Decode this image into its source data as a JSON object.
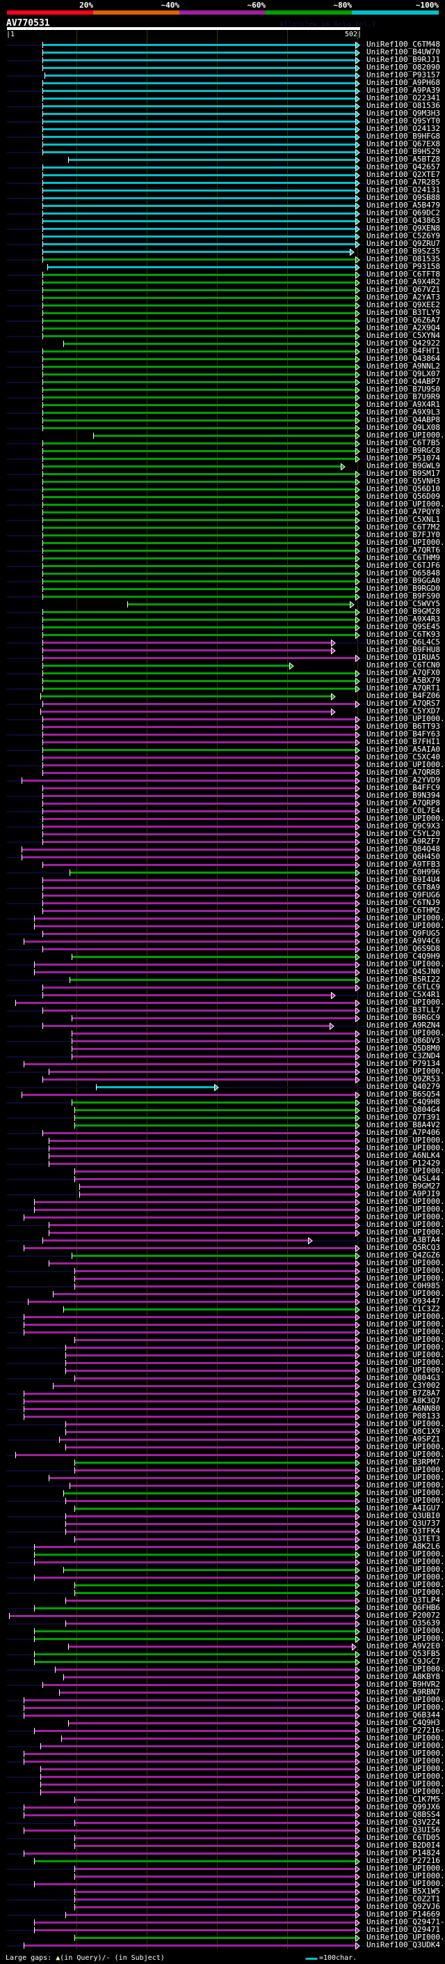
{
  "scale": {
    "labels": [
      "20%",
      "~40%",
      "~60%",
      "~80%",
      "~100%"
    ],
    "colors": [
      "#ff0020",
      "#e06000",
      "#a020a0",
      "#00a000",
      "#00c0c8"
    ]
  },
  "query": {
    "name": "AV770531",
    "start": "|1",
    "end": "502|",
    "length": 502
  },
  "watermark": "AlignView.pm Beta rel.7",
  "colors": {
    "C": "#00c0c8",
    "G": "#00a000",
    "M": "#a020a0"
  },
  "footer": {
    "gaps_prefix": "Large gaps: ",
    "gap_query_glyph": "▲",
    "gaps_text": "(in Query)/- (in Subject)",
    "legend_text": "=100char."
  },
  "rows": [
    [
      "UniRef100_C6TM48",
      "C",
      52
    ],
    [
      "UniRef100_B4UW70",
      "C",
      52
    ],
    [
      "UniRef100_B9RJJ1",
      "C",
      52
    ],
    [
      "UniRef100_O82090",
      "C",
      52
    ],
    [
      "UniRef100_P93157",
      "C",
      55
    ],
    [
      "UniRef100_A9PH68",
      "C",
      52
    ],
    [
      "UniRef100_A9PA39",
      "C",
      52
    ],
    [
      "UniRef100_O22341",
      "C",
      52
    ],
    [
      "UniRef100_O81536",
      "C",
      52
    ],
    [
      "UniRef100_Q9M3H3",
      "C",
      52
    ],
    [
      "UniRef100_Q9SYT0",
      "C",
      52
    ],
    [
      "UniRef100_O24132",
      "C",
      52
    ],
    [
      "UniRef100_B9HFG8",
      "C",
      52
    ],
    [
      "UniRef100_Q67EX8",
      "C",
      52
    ],
    [
      "UniRef100_B9H529",
      "C",
      52
    ],
    [
      "UniRef100_A5BTZ8",
      "C",
      89
    ],
    [
      "UniRef100_Q42657",
      "C",
      52
    ],
    [
      "UniRef100_Q2XTE7",
      "C",
      52
    ],
    [
      "UniRef100_A7R285",
      "C",
      52
    ],
    [
      "UniRef100_O24131",
      "C",
      52
    ],
    [
      "UniRef100_Q9SB88",
      "C",
      52
    ],
    [
      "UniRef100_A5B479",
      "C",
      52
    ],
    [
      "UniRef100_Q69DC2",
      "C",
      52
    ],
    [
      "UniRef100_Q43863",
      "C",
      52
    ],
    [
      "UniRef100_Q9XEN8",
      "C",
      52
    ],
    [
      "UniRef100_C5Z6Y9",
      "C",
      52
    ],
    [
      "UniRef100_Q9ZRU7",
      "C",
      52
    ],
    [
      "UniRef100_B9SZ35",
      "C",
      52,
      494
    ],
    [
      "UniRef100_O81535",
      "G",
      52
    ],
    [
      "UniRef100_P93158",
      "C",
      59
    ],
    [
      "UniRef100_C6TFT8",
      "G",
      52
    ],
    [
      "UniRef100_A9X4R2",
      "G",
      52
    ],
    [
      "UniRef100_Q67VZ1",
      "G",
      52
    ],
    [
      "UniRef100_A2YAT3",
      "G",
      52
    ],
    [
      "UniRef100_Q9XEE2",
      "G",
      52
    ],
    [
      "UniRef100_B3TLY9",
      "G",
      52
    ],
    [
      "UniRef100_Q6Z6A7",
      "G",
      52
    ],
    [
      "UniRef100_A2X9Q4",
      "G",
      52
    ],
    [
      "UniRef100_C5XYN4",
      "G",
      52
    ],
    [
      "UniRef100_Q42922",
      "G",
      82
    ],
    [
      "UniRef100_B4FHT1",
      "G",
      52
    ],
    [
      "UniRef100_Q43864",
      "G",
      52
    ],
    [
      "UniRef100_A9NNL2",
      "G",
      52
    ],
    [
      "UniRef100_Q9LX07",
      "G",
      52
    ],
    [
      "UniRef100_Q4ABP7",
      "G",
      52
    ],
    [
      "UniRef100_B7U9S0",
      "G",
      52
    ],
    [
      "UniRef100_B7U9R9",
      "G",
      52
    ],
    [
      "UniRef100_A9X4R1",
      "G",
      52
    ],
    [
      "UniRef100_A9X9L3",
      "G",
      52
    ],
    [
      "UniRef100_Q4ABP8",
      "G",
      52
    ],
    [
      "UniRef100_Q9LX08",
      "G",
      52
    ],
    [
      "UniRef100_UPI000..",
      "G",
      125
    ],
    [
      "UniRef100_C6T7B5",
      "G",
      52
    ],
    [
      "UniRef100_B9RGC8",
      "G",
      52
    ],
    [
      "UniRef100_P51074",
      "G",
      52
    ],
    [
      "UniRef100_B9GWL9",
      "G",
      52,
      481
    ],
    [
      "UniRef100_B9SM17",
      "G",
      52
    ],
    [
      "UniRef100_Q5VNH3",
      "G",
      52
    ],
    [
      "UniRef100_Q56D10",
      "G",
      52
    ],
    [
      "UniRef100_Q56D09",
      "G",
      52
    ],
    [
      "UniRef100_UPI000..",
      "G",
      52
    ],
    [
      "UniRef100_A7PQY8",
      "G",
      52
    ],
    [
      "UniRef100_C5XNL1",
      "G",
      52
    ],
    [
      "UniRef100_C6T7M2",
      "G",
      52
    ],
    [
      "UniRef100_B7FJY0",
      "G",
      52
    ],
    [
      "UniRef100_UPI000..",
      "G",
      52
    ],
    [
      "UniRef100_A7QRT6",
      "G",
      52
    ],
    [
      "UniRef100_C6THM9",
      "G",
      52
    ],
    [
      "UniRef100_C6TJF6",
      "G",
      52
    ],
    [
      "UniRef100_O65848",
      "G",
      52
    ],
    [
      "UniRef100_B9GGA0",
      "G",
      52
    ],
    [
      "UniRef100_B9RGD0",
      "G",
      52
    ],
    [
      "UniRef100_B9FS90",
      "G",
      52
    ],
    [
      "UniRef100_C5WVY5",
      "G",
      174,
      494
    ],
    [
      "UniRef100_B9GM28",
      "G",
      52
    ],
    [
      "UniRef100_A9X4R3",
      "G",
      52
    ],
    [
      "UniRef100_Q9SE45",
      "G",
      52
    ],
    [
      "UniRef100_C6TK93",
      "G",
      52
    ],
    [
      "UniRef100_Q6L4C5",
      "M",
      52,
      467
    ],
    [
      "UniRef100_B9FHU8",
      "M",
      52,
      467
    ],
    [
      "UniRef100_Q1RUA5",
      "M",
      52
    ],
    [
      "UniRef100_C6TCN0",
      "G",
      52,
      407
    ],
    [
      "UniRef100_A7QFX0",
      "G",
      52
    ],
    [
      "UniRef100_A5BX79",
      "G",
      52
    ],
    [
      "UniRef100_A7QRT1",
      "G",
      52
    ],
    [
      "UniRef100_B4FZ06",
      "G",
      49,
      467
    ],
    [
      "UniRef100_A7QRS7",
      "M",
      52
    ],
    [
      "UniRef100_C5YXD7",
      "M",
      49,
      467
    ],
    [
      "UniRef100_UPI000..",
      "M",
      52
    ],
    [
      "UniRef100_B6TT93",
      "M",
      52
    ],
    [
      "UniRef100_B4FY63",
      "M",
      52
    ],
    [
      "UniRef100_B7FHI1",
      "M",
      52
    ],
    [
      "UniRef100_A5AIA0",
      "G",
      52
    ],
    [
      "UniRef100_C5XC40",
      "M",
      52
    ],
    [
      "UniRef100_UPI000..",
      "M",
      52
    ],
    [
      "UniRef100_A7QRR8",
      "M",
      52
    ],
    [
      "UniRef100_A2YVD9",
      "M",
      22
    ],
    [
      "UniRef100_B4FFC9",
      "M",
      52
    ],
    [
      "UniRef100_B9N394",
      "M",
      52
    ],
    [
      "UniRef100_A7QRP8",
      "M",
      52
    ],
    [
      "UniRef100_C0L7E4",
      "M",
      52
    ],
    [
      "UniRef100_UPI000..",
      "M",
      52
    ],
    [
      "UniRef100_Q9C9X3",
      "M",
      52
    ],
    [
      "UniRef100_C5YL20",
      "M",
      52
    ],
    [
      "UniRef100_A9RZF7",
      "M",
      52
    ],
    [
      "UniRef100_Q84Q48",
      "M",
      22
    ],
    [
      "UniRef100_Q6H450",
      "M",
      22
    ],
    [
      "UniRef100_A9TFB3",
      "M",
      52
    ],
    [
      "UniRef100_C0H996",
      "G",
      91
    ],
    [
      "UniRef100_B9I4U4",
      "M",
      52
    ],
    [
      "UniRef100_C6T8A9",
      "M",
      52
    ],
    [
      "UniRef100_Q9FUG6",
      "M",
      52
    ],
    [
      "UniRef100_C6TNJ9",
      "M",
      52
    ],
    [
      "UniRef100_C6THM2",
      "M",
      52
    ],
    [
      "UniRef100_UPI000..",
      "M",
      40
    ],
    [
      "UniRef100_UPI000..",
      "M",
      40
    ],
    [
      "UniRef100_Q9FUG5",
      "M",
      52
    ],
    [
      "UniRef100_A9V4C6",
      "M",
      25
    ],
    [
      "UniRef100_Q6S9D8",
      "M",
      52
    ],
    [
      "UniRef100_C4Q9H9",
      "G",
      94
    ],
    [
      "UniRef100_UPI000..",
      "M",
      40
    ],
    [
      "UniRef100_Q4SJN0",
      "M",
      40
    ],
    [
      "UniRef100_B5RI22",
      "G",
      91
    ],
    [
      "UniRef100_C6TLC9",
      "M",
      52
    ],
    [
      "UniRef100_C5X4R1",
      "M",
      52,
      467
    ],
    [
      "UniRef100_UPI000..",
      "M",
      13
    ],
    [
      "UniRef100_B3TLL7",
      "M",
      52
    ],
    [
      "UniRef100_B9RGC9",
      "M",
      94
    ],
    [
      "UniRef100_A9RZN4",
      "M",
      52,
      465
    ],
    [
      "UniRef100_UPI000..",
      "M",
      94
    ],
    [
      "UniRef100_Q86DV3",
      "M",
      94
    ],
    [
      "UniRef100_Q5D8M0",
      "M",
      94
    ],
    [
      "UniRef100_C3ZND4",
      "M",
      94
    ],
    [
      "UniRef100_P79134",
      "M",
      25
    ],
    [
      "UniRef100_UPI000..",
      "M",
      61
    ],
    [
      "UniRef100_Q9ZR53",
      "M",
      52
    ],
    [
      "UniRef100_Q40279",
      "C",
      129,
      299
    ],
    [
      "UniRef100_B6SQ54",
      "M",
      22
    ],
    [
      "UniRef100_C4Q9H8",
      "G",
      94
    ],
    [
      "UniRef100_Q804G4",
      "G",
      98
    ],
    [
      "UniRef100_Q7T391",
      "G",
      98
    ],
    [
      "UniRef100_B8A4V2",
      "G",
      98
    ],
    [
      "UniRef100_A7P406",
      "M",
      52
    ],
    [
      "UniRef100_UPI000..",
      "M",
      61
    ],
    [
      "UniRef100_UPI000..",
      "M",
      61
    ],
    [
      "UniRef100_A6NLK4",
      "M",
      61
    ],
    [
      "UniRef100_P12429",
      "M",
      61
    ],
    [
      "UniRef100_UPI000..",
      "M",
      98
    ],
    [
      "UniRef100_Q4SL44",
      "M",
      98
    ],
    [
      "UniRef100_B9GM27",
      "M",
      105
    ],
    [
      "UniRef100_A9PJI9",
      "M",
      105
    ],
    [
      "UniRef100_UPI000..",
      "M",
      40
    ],
    [
      "UniRef100_UPI000..",
      "M",
      40
    ],
    [
      "UniRef100_UPI000..",
      "M",
      25
    ],
    [
      "UniRef100_UPI000..",
      "M",
      61
    ],
    [
      "UniRef100_UPI000..",
      "M",
      61
    ],
    [
      "UniRef100_A3BTA4",
      "M",
      52,
      434
    ],
    [
      "UniRef100_Q5RCQ3",
      "M",
      25
    ],
    [
      "UniRef100_Q4ZGZ6",
      "G",
      94
    ],
    [
      "UniRef100_UPI000..",
      "M",
      61
    ],
    [
      "UniRef100_UPI000..",
      "M",
      98
    ],
    [
      "UniRef100_UPI000..",
      "M",
      98
    ],
    [
      "UniRef100_C0H985",
      "M",
      98
    ],
    [
      "UniRef100_UPI000..",
      "M",
      67
    ],
    [
      "UniRef100_O93447",
      "M",
      31
    ],
    [
      "UniRef100_C1C3Z2",
      "G",
      82
    ],
    [
      "UniRef100_UPI000..",
      "M",
      25
    ],
    [
      "UniRef100_UPI000..",
      "M",
      25
    ],
    [
      "UniRef100_UPI000..",
      "M",
      25
    ],
    [
      "UniRef100_UPI000..",
      "M",
      98
    ],
    [
      "UniRef100_UPI000..",
      "M",
      85
    ],
    [
      "UniRef100_UPI000..",
      "M",
      85
    ],
    [
      "UniRef100_UPI000..",
      "M",
      85
    ],
    [
      "UniRef100_UPI000..",
      "M",
      85
    ],
    [
      "UniRef100_Q804G3",
      "M",
      98
    ],
    [
      "UniRef100_C3Y002",
      "M",
      67
    ],
    [
      "UniRef100_B7Z8A7",
      "M",
      25
    ],
    [
      "UniRef100_A8K3Q7",
      "M",
      25
    ],
    [
      "UniRef100_A6NN80",
      "M",
      25
    ],
    [
      "UniRef100_P08133",
      "M",
      25
    ],
    [
      "UniRef100_UPI000..",
      "M",
      85
    ],
    [
      "UniRef100_Q8C1X9",
      "M",
      85
    ],
    [
      "UniRef100_A9SPZ1",
      "M",
      76
    ],
    [
      "UniRef100_UPI000..",
      "M",
      85
    ],
    [
      "UniRef100_UPI000..",
      "M",
      13
    ],
    [
      "UniRef100_B3RPM7",
      "G",
      98
    ],
    [
      "UniRef100_UPI000..",
      "M",
      98
    ],
    [
      "UniRef100_UPI000..",
      "M",
      61
    ],
    [
      "UniRef100_UPI000..",
      "M",
      91
    ],
    [
      "UniRef100_UPI000..",
      "G",
      82
    ],
    [
      "UniRef100_UPI000..",
      "M",
      85
    ],
    [
      "UniRef100_A4IGU7",
      "G",
      98
    ],
    [
      "UniRef100_Q3UBI0",
      "M",
      85
    ],
    [
      "UniRef100_Q3U737",
      "M",
      85
    ],
    [
      "UniRef100_Q3TFK4",
      "M",
      85
    ],
    [
      "UniRef100_Q3TET3",
      "M",
      98
    ],
    [
      "UniRef100_A8K2L6",
      "M",
      40
    ],
    [
      "UniRef100_UPI000..",
      "G",
      40
    ],
    [
      "UniRef100_UPI000..",
      "M",
      40
    ],
    [
      "UniRef100_UPI000..",
      "G",
      82
    ],
    [
      "UniRef100_UPI000..",
      "M",
      40
    ],
    [
      "UniRef100_UPI000..",
      "G",
      98
    ],
    [
      "UniRef100_UPI000..",
      "G",
      98
    ],
    [
      "UniRef100_Q3TLP4",
      "M",
      85
    ],
    [
      "UniRef100_Q6FHB6",
      "G",
      40
    ],
    [
      "UniRef100_P20072",
      "M",
      4
    ],
    [
      "UniRef100_O35639",
      "M",
      85
    ],
    [
      "UniRef100_UPI000..",
      "G",
      40
    ],
    [
      "UniRef100_UPI000..",
      "G",
      40
    ],
    [
      "UniRef100_A9V2E0",
      "M",
      89,
      497
    ],
    [
      "UniRef100_Q53FB5",
      "G",
      40
    ],
    [
      "UniRef100_C9JGC7",
      "G",
      40
    ],
    [
      "UniRef100_UPI000..",
      "M",
      70
    ],
    [
      "UniRef100_A8KBY8",
      "M",
      82
    ],
    [
      "UniRef100_B9HVR2",
      "M",
      52
    ],
    [
      "UniRef100_A9RBN7",
      "M",
      76
    ],
    [
      "UniRef100_UPI000..",
      "M",
      25
    ],
    [
      "UniRef100_UPI000..",
      "M",
      25
    ],
    [
      "UniRef100_Q6B344",
      "M",
      25
    ],
    [
      "UniRef100_C4Q9H3",
      "M",
      89
    ],
    [
      "UniRef100_P27216-2",
      "M",
      40
    ],
    [
      "UniRef100_UPI000..",
      "M",
      79
    ],
    [
      "UniRef100_UPI000..",
      "M",
      49
    ],
    [
      "UniRef100_UPI000..",
      "M",
      25
    ],
    [
      "UniRef100_UPI000..",
      "M",
      25
    ],
    [
      "UniRef100_UPI000..",
      "M",
      49
    ],
    [
      "UniRef100_UPI000..",
      "M",
      49
    ],
    [
      "UniRef100_UPI000..",
      "M",
      49
    ],
    [
      "UniRef100_UPI000..",
      "M",
      49
    ],
    [
      "UniRef100_C1K7M5",
      "M",
      98
    ],
    [
      "UniRef100_Q99JX6",
      "M",
      25
    ],
    [
      "UniRef100_Q8BSS4",
      "M",
      25
    ],
    [
      "UniRef100_Q3V2Z4",
      "M",
      98
    ],
    [
      "UniRef100_Q3UI56",
      "M",
      25
    ],
    [
      "UniRef100_C6TD05",
      "M",
      98
    ],
    [
      "UniRef100_B2D0I4",
      "M",
      98
    ],
    [
      "UniRef100_P14824",
      "M",
      25
    ],
    [
      "UniRef100_P27216",
      "G",
      40
    ],
    [
      "UniRef100_UPI000..",
      "M",
      98
    ],
    [
      "UniRef100_UPI000..",
      "M",
      98
    ],
    [
      "UniRef100_UPI000..",
      "M",
      40
    ],
    [
      "UniRef100_B5X1W5",
      "M",
      98
    ],
    [
      "UniRef100_C0Z2T1",
      "M",
      98
    ],
    [
      "UniRef100_Q9ZVJ6",
      "M",
      98
    ],
    [
      "UniRef100_P14669",
      "M",
      85
    ],
    [
      "UniRef100_Q29471-2",
      "M",
      40
    ],
    [
      "UniRef100_Q29471",
      "M",
      40
    ],
    [
      "UniRef100_UPI000..",
      "G",
      98
    ],
    [
      "UniRef100_Q3UDK4",
      "M",
      25
    ]
  ]
}
